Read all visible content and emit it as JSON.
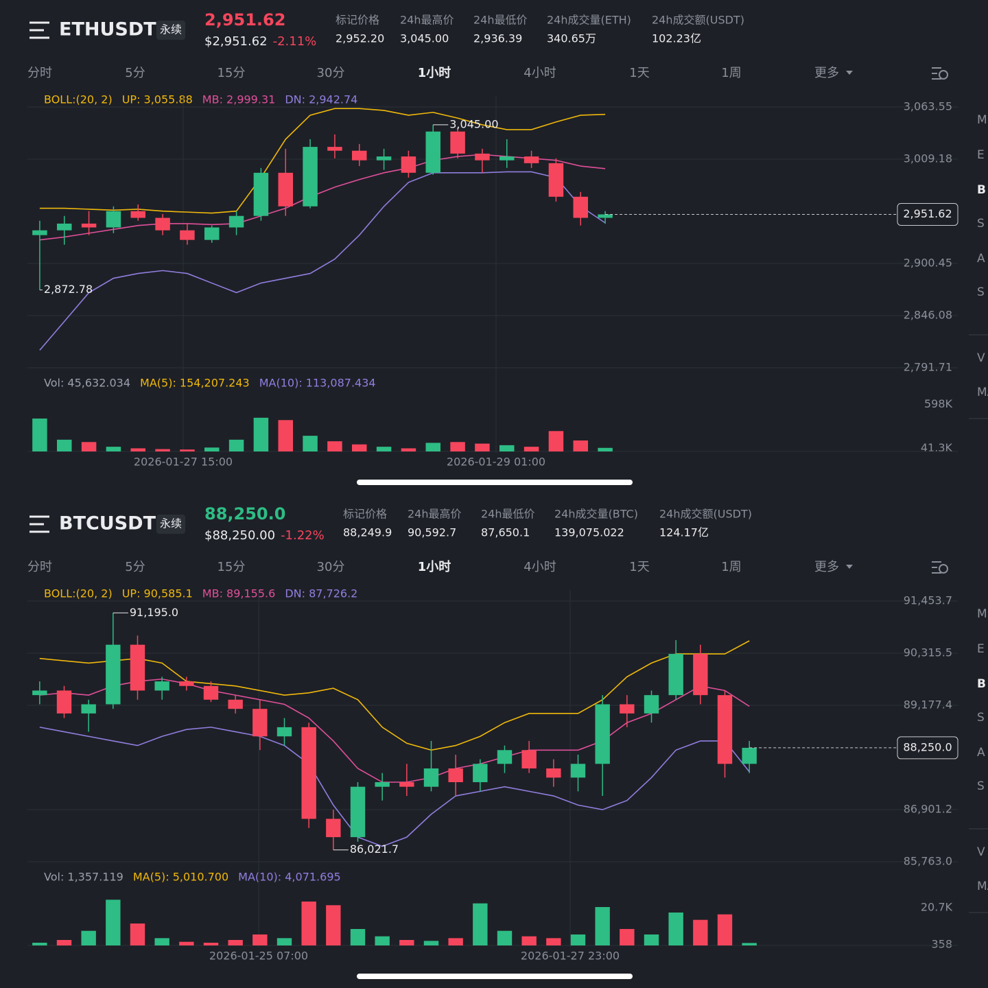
{
  "panels": [
    {
      "symbol": "ETHUSDT",
      "contract": "永续",
      "price": "2,951.62",
      "price_color": "#f6465d",
      "usd_price": "$2,951.62",
      "change": "-2.11%",
      "change_color": "#f6465d",
      "stats": [
        {
          "label": "标记价格",
          "value": "2,952.20"
        },
        {
          "label": "24h最高价",
          "value": "3,045.00"
        },
        {
          "label": "24h最低价",
          "value": "2,936.39"
        },
        {
          "label": "24h成交量(ETH)",
          "value": "340.65万"
        },
        {
          "label": "24h成交额(USDT)",
          "value": "102.23亿"
        }
      ],
      "tabs": [
        "分时",
        "5分",
        "15分",
        "30分",
        "1小时",
        "4小时",
        "1天",
        "1周",
        "更多"
      ],
      "active_tab": 4,
      "boll_legend": [
        "BOLL:(20, 2)",
        "UP: 3,055.88",
        "MB: 2,999.31",
        "DN: 2,942.74"
      ],
      "chart": {
        "type": "candlestick",
        "ylim": [
          2783.1,
          3075.0
        ],
        "yticks": [
          {
            "value": 3063.55,
            "label": "3,063.55"
          },
          {
            "value": 3009.18,
            "label": "3,009.18"
          },
          {
            "value": 2900.45,
            "label": "2,900.45"
          },
          {
            "value": 2846.08,
            "label": "2,846.08"
          },
          {
            "value": 2791.71,
            "label": "2,791.71"
          }
        ],
        "open": [
          2930,
          2935,
          2942,
          2938,
          2955,
          2948,
          2935,
          2925,
          2938,
          2950,
          2995,
          2960,
          3022,
          3018,
          3008,
          3012,
          2995,
          3038,
          3015,
          3008,
          3012,
          3005,
          2970,
          2948
        ],
        "high": [
          2945,
          2950,
          2955,
          2960,
          2962,
          2952,
          2942,
          2940,
          2955,
          3000,
          3020,
          3030,
          3035,
          3025,
          3020,
          3018,
          3045,
          3042,
          3020,
          3030,
          3018,
          3010,
          2975,
          2955
        ],
        "low": [
          2872.78,
          2920,
          2930,
          2932,
          2945,
          2930,
          2920,
          2922,
          2930,
          2945,
          2950,
          2958,
          3010,
          3002,
          2998,
          2990,
          2993,
          3010,
          2995,
          3000,
          3000,
          2965,
          2940,
          2942
        ],
        "close": [
          2935,
          2942,
          2938,
          2955,
          2948,
          2935,
          2925,
          2938,
          2950,
          2995,
          2960,
          3022,
          3018,
          3008,
          3012,
          2995,
          3038,
          3015,
          3008,
          3012,
          3005,
          2970,
          2948,
          2951.62
        ],
        "boll_upper": [
          2958,
          2958,
          2957,
          2956,
          2957,
          2955,
          2954,
          2953,
          2955,
          2990,
          3030,
          3055,
          3062,
          3062,
          3060,
          3055,
          3058,
          3052,
          3045,
          3040,
          3040,
          3048,
          3055,
          3055.88
        ],
        "boll_mid": [
          2925,
          2928,
          2932,
          2936,
          2940,
          2942,
          2942,
          2941,
          2942,
          2950,
          2958,
          2970,
          2980,
          2988,
          2995,
          3000,
          3008,
          3012,
          3014,
          3012,
          3010,
          3008,
          3002,
          2999.31
        ],
        "boll_lower": [
          2810,
          2840,
          2870,
          2885,
          2890,
          2893,
          2890,
          2880,
          2870,
          2880,
          2885,
          2890,
          2905,
          2930,
          2960,
          2985,
          2995,
          2995,
          2995,
          2996,
          2996,
          2990,
          2960,
          2942.74
        ],
        "boll_colors": [
          "#f0b90b",
          "#e0509a",
          "#8f7fe0"
        ],
        "last_price": {
          "value": 2951.62,
          "label": "2,951.62"
        },
        "high_label": {
          "value": 3045,
          "label": "3,045.00"
        },
        "low_label": {
          "value": 2872.78,
          "label": "2,872.78"
        }
      },
      "volume": {
        "legend": [
          "Vol: 45,632.034",
          "MA(5): 154,207.243",
          "MA(10): 113,087.434"
        ],
        "ylim": [
          0,
          700000
        ],
        "yticks": [
          {
            "value": 598000,
            "label": "598K"
          },
          {
            "value": 41300,
            "label": "41.3K"
          }
        ],
        "values": [
          420000,
          150000,
          120000,
          60000,
          40000,
          30000,
          25000,
          50000,
          150000,
          430000,
          400000,
          200000,
          130000,
          90000,
          60000,
          40000,
          110000,
          120000,
          100000,
          80000,
          60000,
          260000,
          140000,
          45632.034
        ]
      },
      "time_labels": [
        "2026-01-27 15:00",
        "2026-01-29 01:00"
      ],
      "sidebar": [
        "M",
        "E",
        "B",
        "S",
        "A",
        "S",
        "V",
        "MA"
      ]
    },
    {
      "symbol": "BTCUSDT",
      "contract": "永续",
      "price": "88,250.0",
      "price_color": "#2ebd85",
      "usd_price": "$88,250.00",
      "change": "-1.22%",
      "change_color": "#f6465d",
      "stats": [
        {
          "label": "标记价格",
          "value": "88,249.9"
        },
        {
          "label": "24h最高价",
          "value": "90,592.7"
        },
        {
          "label": "24h最低价",
          "value": "87,650.1"
        },
        {
          "label": "24h成交量(BTC)",
          "value": "139,075.022"
        },
        {
          "label": "24h成交额(USDT)",
          "value": "124.17亿"
        }
      ],
      "tabs": [
        "分时",
        "5分",
        "15分",
        "30分",
        "1小时",
        "4小时",
        "1天",
        "1周",
        "更多"
      ],
      "active_tab": 4,
      "boll_legend": [
        "BOLL:(20, 2)",
        "UP: 90,585.1",
        "MB: 89,155.6",
        "DN: 87,726.2"
      ],
      "chart": {
        "type": "candlestick",
        "ylim": [
          85583.3,
          91693.3
        ],
        "yticks": [
          {
            "value": 91453.7,
            "label": "91,453.7"
          },
          {
            "value": 90315.5,
            "label": "90,315.5"
          },
          {
            "value": 89177.4,
            "label": "89,177.4"
          },
          {
            "value": 86901.2,
            "label": "86,901.2"
          },
          {
            "value": 85763.0,
            "label": "85,763.0"
          }
        ],
        "open": [
          89400,
          89500,
          89000,
          89200,
          90500,
          89500,
          89700,
          89600,
          89300,
          89100,
          88500,
          88700,
          86700,
          86300,
          87400,
          87500,
          87400,
          87800,
          87500,
          87900,
          88200,
          87800,
          87600,
          87900,
          89200,
          89000,
          89400,
          90300,
          89400,
          87900
        ],
        "high": [
          89700,
          89600,
          89300,
          91195,
          90700,
          89800,
          89800,
          89700,
          89400,
          89300,
          88900,
          88800,
          86900,
          87500,
          87700,
          87900,
          88400,
          88100,
          88000,
          88300,
          88400,
          88000,
          88100,
          89400,
          89400,
          89500,
          90600,
          90500,
          89500,
          88400
        ],
        "low": [
          89200,
          88900,
          88600,
          89100,
          89300,
          89300,
          89500,
          89250,
          89000,
          88200,
          88300,
          86500,
          86021.7,
          86200,
          87100,
          87200,
          87300,
          87200,
          87300,
          87700,
          87700,
          87400,
          87300,
          87200,
          88700,
          88800,
          89300,
          89200,
          87600,
          87700
        ],
        "close": [
          89500,
          89000,
          89200,
          90500,
          89500,
          89700,
          89600,
          89300,
          89100,
          88500,
          88700,
          86700,
          86300,
          87400,
          87500,
          87400,
          87800,
          87500,
          87900,
          88200,
          87800,
          87600,
          87900,
          89200,
          89000,
          89400,
          90300,
          89400,
          87900,
          88250
        ],
        "boll_upper": [
          90200,
          90150,
          90100,
          90150,
          90200,
          90100,
          89700,
          89650,
          89600,
          89500,
          89400,
          89450,
          89550,
          89300,
          88700,
          88350,
          88200,
          88300,
          88500,
          88800,
          89000,
          89000,
          89000,
          89300,
          89800,
          90100,
          90300,
          90300,
          90300,
          90585.1
        ],
        "boll_mid": [
          89400,
          89450,
          89400,
          89600,
          89700,
          89750,
          89650,
          89500,
          89400,
          89300,
          89200,
          88900,
          88400,
          87800,
          87500,
          87500,
          87600,
          87800,
          87900,
          88050,
          88200,
          88200,
          88200,
          88400,
          88800,
          89000,
          89300,
          89600,
          89500,
          89155.6
        ],
        "boll_lower": [
          88700,
          88600,
          88500,
          88400,
          88300,
          88500,
          88650,
          88700,
          88600,
          88500,
          88300,
          87900,
          87000,
          86300,
          86100,
          86300,
          86800,
          87200,
          87300,
          87400,
          87300,
          87200,
          87000,
          86900,
          87100,
          87600,
          88200,
          88400,
          88400,
          87726.2
        ],
        "boll_colors": [
          "#f0b90b",
          "#e0509a",
          "#8f7fe0"
        ],
        "last_price": {
          "value": 88250,
          "label": "88,250.0"
        },
        "high_label": {
          "value": 91195,
          "label": "91,195.0"
        },
        "low_label": {
          "value": 86021.7,
          "label": "86,021.7"
        }
      },
      "volume": {
        "legend": [
          "Vol: 1,357.119",
          "MA(5): 5,010.700",
          "MA(10): 4,071.695"
        ],
        "ylim": [
          0,
          30000
        ],
        "yticks": [
          {
            "value": 20700,
            "label": "20.7K"
          },
          358
        ],
        "values": [
          1500,
          3000,
          8000,
          25000,
          12000,
          4000,
          2000,
          1500,
          3000,
          6000,
          4000,
          24000,
          22000,
          9000,
          5000,
          3000,
          2500,
          4000,
          23000,
          8000,
          5000,
          4000,
          6000,
          21000,
          9000,
          6000,
          18000,
          14000,
          17000,
          1357.119
        ]
      },
      "time_labels": [
        "2026-01-25 07:00",
        "2026-01-27 23:00"
      ],
      "sidebar": [
        "M",
        "E",
        "B",
        "S",
        "A",
        "S",
        "V",
        "MA"
      ]
    }
  ]
}
